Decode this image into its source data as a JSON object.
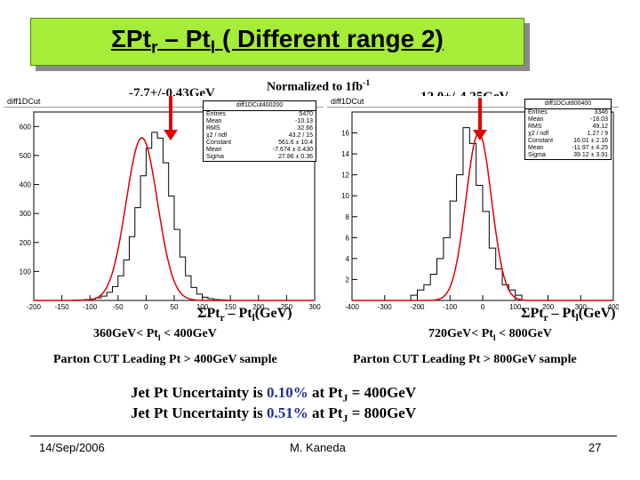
{
  "slide": {
    "title_pre": "ΣPt",
    "title_sub1": "r",
    "title_mid": " – Pt",
    "title_sub2": "l",
    "title_post": " ( Different range 2)",
    "normalized_pre": "Normalized to 1fb",
    "normalized_sup": "-1",
    "footer_date": "14/Sep/2006",
    "footer_author": "M. Kaneda",
    "footer_page": "27",
    "uncertainty": [
      {
        "lead": "Jet Pt Uncertainty is ",
        "value": "0.10%",
        "mid": " at Pt",
        "sub": "J",
        "tail": " = 400GeV"
      },
      {
        "lead": "Jet Pt Uncertainty is ",
        "value": "0.51%",
        "mid": " at Pt",
        "sub": "J",
        "tail": " = 800GeV"
      }
    ],
    "colors": {
      "title_bg": "#a6ed3a",
      "fit": "#e00000",
      "highlight": "#1f2f9a"
    }
  },
  "panels": {
    "left": {
      "header": "diff1DCut",
      "value_label": "-7.7+/-0.43GeV",
      "axis_pre": "ΣPt",
      "axis_sub1": "r",
      "axis_mid": " – Pt",
      "axis_sub2": "l",
      "axis_post": "(GeV)",
      "range_pre": "360GeV< Pt",
      "range_sub": "l",
      "range_post": " < 400GeV",
      "cut": "Parton CUT  Leading Pt > 400GeV sample",
      "stats_title": "diff1DCut400200",
      "stats": [
        {
          "k": "Entries",
          "v": "5470"
        },
        {
          "k": "Mean",
          "v": "-10.13"
        },
        {
          "k": "RMS",
          "v": "32.66"
        },
        {
          "k": "χ2 / ndf",
          "v": "43.2 / 15"
        },
        {
          "k": "Constant",
          "v": "561.6 ± 10.4"
        },
        {
          "k": "Mean",
          "v": "-7.674 ± 0.430"
        },
        {
          "k": "Sigma",
          "v": "27.86 ± 0.36"
        }
      ]
    },
    "right": {
      "header": "diff1DCut",
      "value_label": "-12.0+/-4.25GeV",
      "axis_pre": "ΣPt",
      "axis_sub1": "r",
      "axis_mid": " – Pt",
      "axis_sub2": "l",
      "axis_post": "(GeV)",
      "range_pre": "720GeV< Pt",
      "range_sub": "l",
      "range_post": " < 800GeV",
      "cut": "Parton CUT  Leading Pt > 800GeV sample",
      "stats_title": "diff1DCut800400",
      "stats": [
        {
          "k": "Entries",
          "v": "3346"
        },
        {
          "k": "Mean",
          "v": "-16.03"
        },
        {
          "k": "RMS",
          "v": "49.12"
        },
        {
          "k": "χ2 / ndf",
          "v": "1.27 / 9"
        },
        {
          "k": "Constant",
          "v": "16.01 ± 2.16"
        },
        {
          "k": "Mean",
          "v": "-11.97 ± 4.25"
        },
        {
          "k": "Sigma",
          "v": "39.12 ± 3.91"
        }
      ]
    }
  },
  "chart_data": [
    {
      "type": "bar",
      "title": "diff1DCut",
      "xlabel": "ΣPtr – Ptl(GeV)",
      "xlim": [
        -200,
        300
      ],
      "ylim": [
        0,
        650
      ],
      "xticks": [
        -200,
        -150,
        -100,
        -50,
        0,
        50,
        100,
        150,
        200,
        250,
        300
      ],
      "yticks": [
        100,
        200,
        300,
        400,
        500,
        600
      ],
      "bin_width": 10,
      "bin_edges_start": -200,
      "values": [
        0,
        0,
        0,
        0,
        0,
        0,
        0,
        1,
        2,
        3,
        5,
        9,
        15,
        28,
        48,
        85,
        140,
        220,
        320,
        430,
        525,
        580,
        560,
        475,
        360,
        245,
        150,
        85,
        45,
        22,
        11,
        6,
        3,
        2,
        1,
        0,
        0,
        0,
        0,
        0,
        0,
        0,
        0,
        0,
        0,
        0,
        0,
        0,
        0,
        0
      ],
      "fit": {
        "constant": 561.6,
        "mean": -7.674,
        "sigma": 27.86
      }
    },
    {
      "type": "bar",
      "title": "diff1DCut",
      "xlabel": "ΣPtr – Ptl(GeV)",
      "xlim": [
        -400,
        400
      ],
      "ylim": [
        0,
        18
      ],
      "xticks": [
        -400,
        -300,
        -200,
        -100,
        0,
        100,
        200,
        300,
        400
      ],
      "yticks": [
        2,
        4,
        6,
        8,
        10,
        12,
        14,
        16
      ],
      "bin_width": 20,
      "bin_edges_start": -400,
      "values": [
        0,
        0,
        0,
        0,
        0,
        0,
        0,
        0,
        0,
        0.5,
        1,
        1.5,
        2.5,
        4,
        6,
        9.5,
        12,
        16.5,
        15,
        11,
        8.5,
        5,
        3,
        1.5,
        1,
        0.5,
        0,
        0,
        0,
        0,
        0,
        0,
        0,
        0,
        0,
        0,
        0,
        0,
        0,
        0
      ],
      "fit": {
        "constant": 16.01,
        "mean": -11.97,
        "sigma": 39.12
      }
    }
  ]
}
